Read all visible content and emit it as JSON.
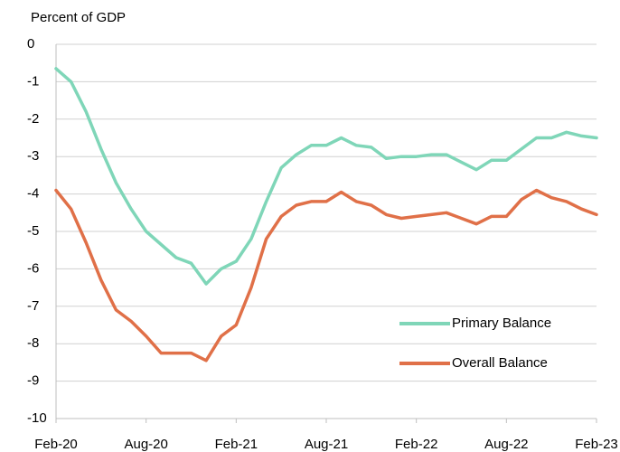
{
  "chart_data": {
    "type": "line",
    "y_label": "Percent of GDP",
    "categories": [
      "Feb-20",
      null,
      null,
      null,
      null,
      null,
      "Aug-20",
      null,
      null,
      null,
      null,
      null,
      "Feb-21",
      null,
      null,
      null,
      null,
      null,
      "Aug-21",
      null,
      null,
      null,
      null,
      null,
      "Feb-22",
      null,
      null,
      null,
      null,
      null,
      "Aug-22",
      null,
      null,
      null,
      null,
      null,
      "Feb-23"
    ],
    "series": [
      {
        "name": "Primary Balance",
        "color": "#7fd6b8",
        "values": [
          -0.65,
          -1.0,
          -1.8,
          -2.8,
          -3.7,
          -4.4,
          -5.0,
          -5.35,
          -5.7,
          -5.85,
          -6.4,
          -6.0,
          -5.8,
          -5.2,
          -4.2,
          -3.3,
          -2.95,
          -2.7,
          -2.7,
          -2.5,
          -2.7,
          -2.75,
          -3.05,
          -3.0,
          -3.0,
          -2.95,
          -2.95,
          -3.15,
          -3.35,
          -3.1,
          -3.1,
          -2.8,
          -2.5,
          -2.5,
          -2.35,
          -2.45,
          -2.5
        ]
      },
      {
        "name": "Overall Balance",
        "color": "#e07048",
        "values": [
          -3.9,
          -4.4,
          -5.3,
          -6.3,
          -7.1,
          -7.4,
          -7.8,
          -8.25,
          -8.25,
          -8.25,
          -8.45,
          -7.8,
          -7.5,
          -6.5,
          -5.2,
          -4.6,
          -4.3,
          -4.2,
          -4.2,
          -3.95,
          -4.2,
          -4.3,
          -4.55,
          -4.65,
          -4.6,
          -4.55,
          -4.5,
          -4.65,
          -4.8,
          -4.6,
          -4.6,
          -4.15,
          -3.9,
          -4.1,
          -4.2,
          -4.4,
          -4.55
        ]
      }
    ],
    "ylim": [
      -10,
      0
    ],
    "yticks": [
      0,
      -1,
      -2,
      -3,
      -4,
      -5,
      -6,
      -7,
      -8,
      -9,
      -10
    ],
    "grid": true,
    "legend": "lower right"
  }
}
